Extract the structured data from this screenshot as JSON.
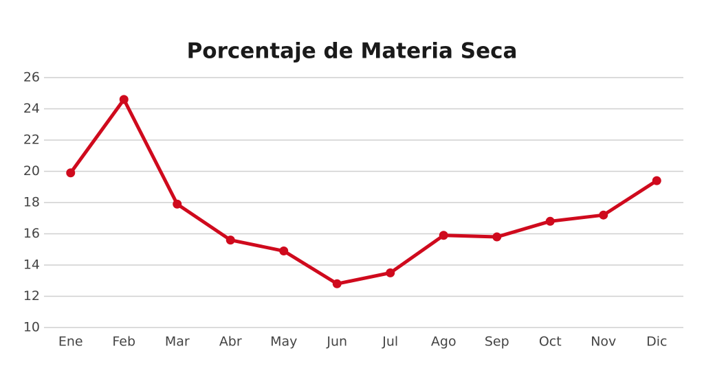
{
  "chart_data": {
    "type": "line",
    "title": "Porcentaje de Materia Seca",
    "categories": [
      "Ene",
      "Feb",
      "Mar",
      "Abr",
      "May",
      "Jun",
      "Jul",
      "Ago",
      "Sep",
      "Oct",
      "Nov",
      "Dic"
    ],
    "values": [
      19.9,
      24.6,
      17.9,
      15.6,
      14.9,
      12.8,
      13.5,
      15.9,
      15.8,
      16.8,
      17.2,
      19.4
    ],
    "color": "#cf0a1d",
    "ylim": [
      10,
      26
    ],
    "yticks": [
      10,
      12,
      14,
      16,
      18,
      20,
      22,
      24,
      26
    ],
    "grid": true
  }
}
